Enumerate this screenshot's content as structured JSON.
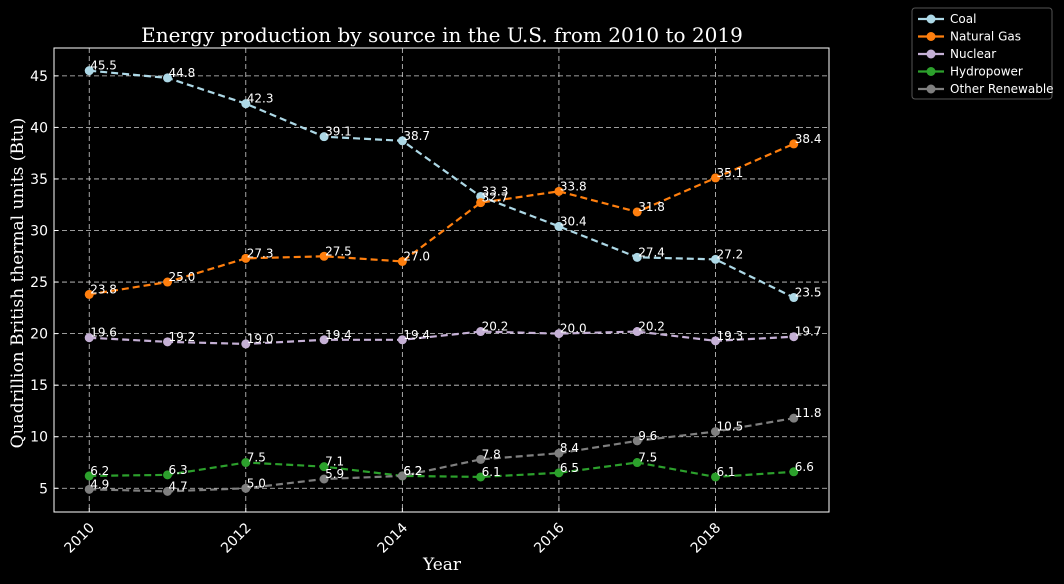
{
  "chart_data": {
    "type": "line",
    "title": "Energy production by source in the U.S. from 2010 to 2019",
    "xlabel": "Year",
    "ylabel": "Quadrillion British thermal units (Btu)",
    "x": [
      2010,
      2011,
      2012,
      2013,
      2014,
      2015,
      2016,
      2017,
      2018,
      2019
    ],
    "x_ticks": [
      "2010",
      "2012",
      "2014",
      "2016",
      "2018"
    ],
    "y_ticks": [
      "5",
      "10",
      "15",
      "20",
      "25",
      "30",
      "35",
      "40",
      "45"
    ],
    "xlim": [
      2009.55,
      2019.45
    ],
    "ylim": [
      2.7,
      47.7
    ],
    "grid": true,
    "legend_position": "outside-top-right",
    "series": [
      {
        "name": "Coal",
        "color": "#add8e6",
        "values": [
          45.5,
          44.8,
          42.3,
          39.1,
          38.7,
          33.3,
          30.4,
          27.4,
          27.2,
          23.5
        ],
        "labels": [
          "45.5",
          "44.8",
          "42.3",
          "39.1",
          "38.7",
          "33.3",
          "30.4",
          "27.4",
          "27.2",
          "23.5"
        ]
      },
      {
        "name": "Natural Gas",
        "color": "#ff7f0e",
        "values": [
          23.8,
          25.0,
          27.3,
          27.5,
          27.0,
          32.7,
          33.8,
          31.8,
          35.1,
          38.4
        ],
        "labels": [
          "23.8",
          "25.0",
          "27.3",
          "27.5",
          "27.0",
          "32.7",
          "33.8",
          "31.8",
          "35.1",
          "38.4"
        ]
      },
      {
        "name": "Nuclear",
        "color": "#c5b0d5",
        "values": [
          19.6,
          19.2,
          19.0,
          19.4,
          19.4,
          20.2,
          20.0,
          20.2,
          19.3,
          19.7
        ],
        "labels": [
          "19.6",
          "19.2",
          "19.0",
          "19.4",
          "19.4",
          "20.2",
          "20.0",
          "20.2",
          "19.3",
          "19.7"
        ]
      },
      {
        "name": "Hydropower",
        "color": "#2ca02c",
        "values": [
          6.2,
          6.3,
          7.5,
          7.1,
          6.2,
          6.1,
          6.5,
          7.5,
          6.1,
          6.6
        ],
        "labels": [
          "6.2",
          "6.3",
          "7.5",
          "7.1",
          "6.2",
          "6.1",
          "6.5",
          "7.5",
          "6.1",
          "6.6"
        ]
      },
      {
        "name": "Other Renewable",
        "color": "#7f7f7f",
        "values": [
          4.9,
          4.7,
          5.0,
          5.9,
          6.2,
          7.8,
          8.4,
          9.6,
          10.5,
          11.8
        ],
        "labels": [
          "4.9",
          "4.7",
          "5.0",
          "5.9",
          "6.2",
          "7.8",
          "8.4",
          "9.6",
          "10.5",
          "11.8"
        ]
      }
    ]
  }
}
